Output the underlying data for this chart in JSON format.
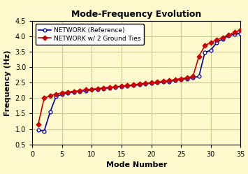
{
  "title": "Mode-Frequency Evolution",
  "xlabel": "Mode Number",
  "ylabel": "Frequency (Hz)",
  "xlim": [
    0,
    35
  ],
  "ylim": [
    0.5,
    4.5
  ],
  "xticks": [
    0,
    5,
    10,
    15,
    20,
    25,
    30,
    35
  ],
  "yticks": [
    0.5,
    1.0,
    1.5,
    2.0,
    2.5,
    3.0,
    3.5,
    4.0,
    4.5
  ],
  "background_color": "#FFFACD",
  "grid_color": "#CCCC99",
  "ref_label": "NETWORK (Reference)",
  "mod_label": "NETWORK w/ 2 Ground Ties",
  "ref_color": "#0000AA",
  "mod_color": "#CC0000",
  "ref_x": [
    1,
    2,
    3,
    4,
    5,
    6,
    7,
    8,
    9,
    10,
    11,
    12,
    13,
    14,
    15,
    16,
    17,
    18,
    19,
    20,
    21,
    22,
    23,
    24,
    25,
    26,
    27,
    28,
    29,
    30,
    31,
    32,
    33,
    34,
    35
  ],
  "ref_y": [
    0.97,
    0.93,
    1.55,
    2.05,
    2.12,
    2.17,
    2.2,
    2.22,
    2.24,
    2.27,
    2.29,
    2.31,
    2.33,
    2.35,
    2.37,
    2.39,
    2.41,
    2.43,
    2.46,
    2.48,
    2.5,
    2.52,
    2.54,
    2.57,
    2.6,
    2.63,
    2.66,
    2.7,
    3.48,
    3.55,
    3.8,
    3.92,
    4.02,
    4.07,
    4.1
  ],
  "mod_x": [
    1,
    2,
    3,
    4,
    5,
    6,
    7,
    8,
    9,
    10,
    11,
    12,
    13,
    14,
    15,
    16,
    17,
    18,
    19,
    20,
    21,
    22,
    23,
    24,
    25,
    26,
    27,
    28,
    29,
    30,
    31,
    32,
    33,
    34,
    35
  ],
  "mod_y": [
    1.15,
    2.0,
    2.07,
    2.13,
    2.17,
    2.2,
    2.22,
    2.24,
    2.27,
    2.29,
    2.31,
    2.33,
    2.35,
    2.37,
    2.39,
    2.41,
    2.43,
    2.46,
    2.48,
    2.5,
    2.52,
    2.55,
    2.57,
    2.6,
    2.63,
    2.66,
    2.7,
    3.35,
    3.7,
    3.8,
    3.88,
    3.96,
    4.05,
    4.13,
    4.2
  ],
  "title_fontsize": 9,
  "label_fontsize": 8,
  "tick_fontsize": 7,
  "legend_fontsize": 6.5,
  "linewidth": 1.2,
  "markersize": 3.5
}
